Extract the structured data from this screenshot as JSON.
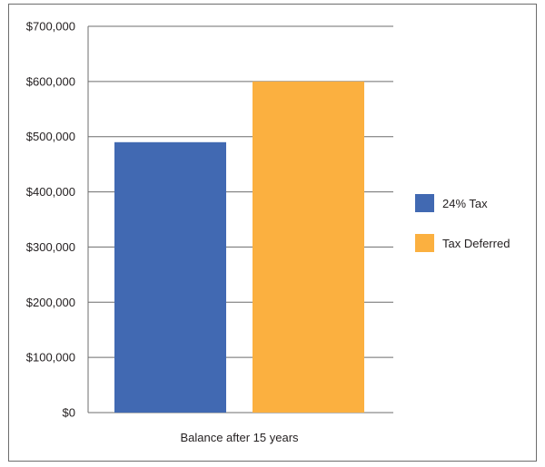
{
  "chart_data": {
    "type": "bar",
    "categories": [
      "Balance after 15 years"
    ],
    "series": [
      {
        "name": "24% Tax",
        "values": [
          490000
        ],
        "color": "#4169b2"
      },
      {
        "name": "Tax Deferred",
        "values": [
          600000
        ],
        "color": "#fbb040"
      }
    ],
    "title": "",
    "xlabel": "",
    "ylabel": "",
    "ylim": [
      0,
      700000
    ],
    "yticks": [
      0,
      100000,
      200000,
      300000,
      400000,
      500000,
      600000,
      700000
    ],
    "ytick_labels": [
      "$0",
      "$100,000",
      "$200,000",
      "$300,000",
      "$400,000",
      "$500,000",
      "$600,000",
      "$700,000"
    ],
    "grid": true,
    "legend_position": "right"
  }
}
